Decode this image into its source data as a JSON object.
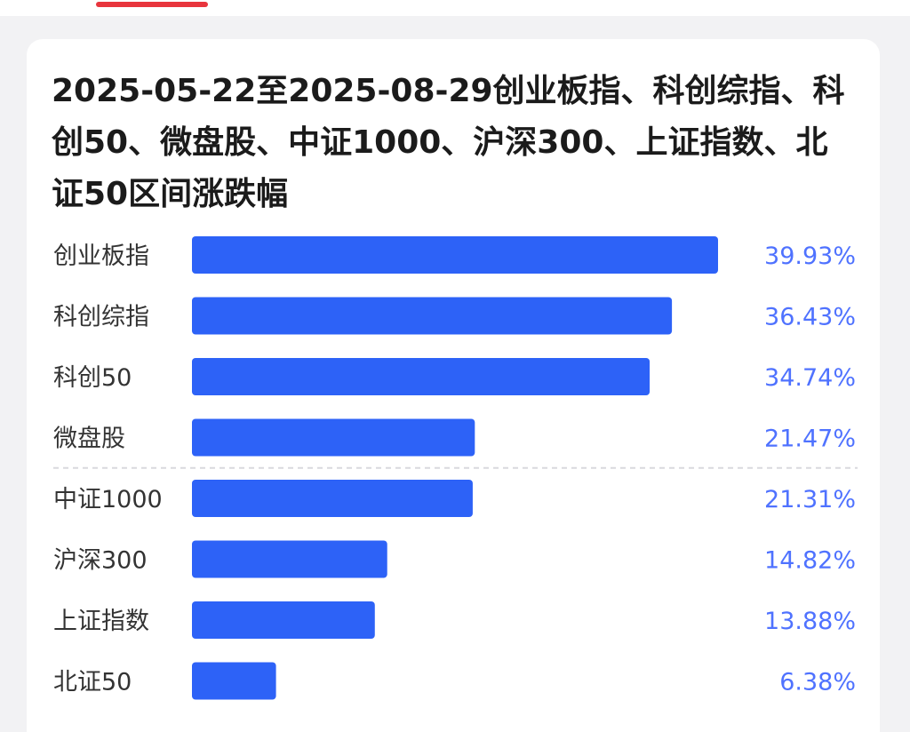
{
  "colors": {
    "bar": "#2d62f7",
    "value_text": "#4f72ff",
    "tab_indicator": "#e8353d",
    "separator": "#d9d9de"
  },
  "chart_data": {
    "type": "bar",
    "orientation": "horizontal",
    "title": "2025-05-22至2025-08-29创业板指、科创综指、科创50、微盘股、中证1000、沪深300、上证指数、北证50区间涨跌幅",
    "categories": [
      "创业板指",
      "科创综指",
      "科创50",
      "微盘股",
      "中证1000",
      "沪深300",
      "上证指数",
      "北证50"
    ],
    "values": [
      39.93,
      36.43,
      34.74,
      21.47,
      21.31,
      14.82,
      13.88,
      6.38
    ],
    "value_labels": [
      "39.93%",
      "36.43%",
      "34.74%",
      "21.47%",
      "21.31%",
      "14.82%",
      "13.88%",
      "6.38%"
    ],
    "xlim": [
      0,
      39.93
    ],
    "grid": false,
    "legend": "none"
  }
}
